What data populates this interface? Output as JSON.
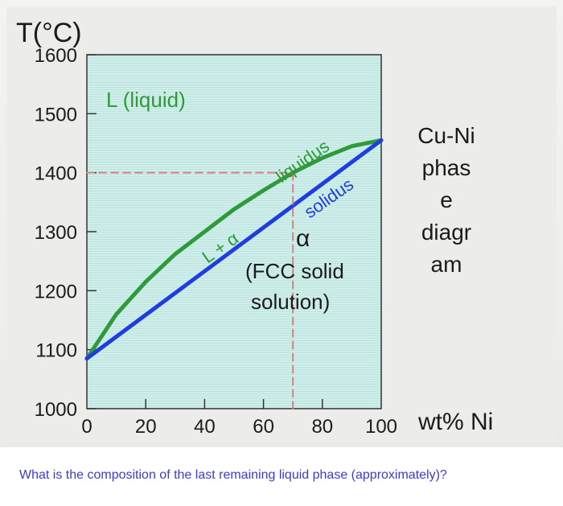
{
  "chart_data": {
    "type": "line",
    "title": "",
    "ylabel": "T(°C)",
    "xlabel": "wt% Ni",
    "x_ticks": [
      "0",
      "20",
      "40",
      "60",
      "80",
      "100"
    ],
    "y_ticks": [
      "1000",
      "1100",
      "1200",
      "1300",
      "1400",
      "1500",
      "1600"
    ],
    "xlim": [
      0,
      100
    ],
    "ylim": [
      1000,
      1600
    ],
    "series": [
      {
        "name": "liquidus",
        "color": "#2e9a3a",
        "x": [
          0,
          10,
          20,
          30,
          40,
          50,
          60,
          70,
          80,
          90,
          100
        ],
        "y": [
          1085,
          1160,
          1215,
          1262,
          1300,
          1338,
          1370,
          1400,
          1425,
          1445,
          1455
        ]
      },
      {
        "name": "solidus",
        "color": "#1f3ee0",
        "x": [
          0,
          100
        ],
        "y": [
          1085,
          1455
        ]
      },
      {
        "name": "",
        "color": "#d98080",
        "style": "dashed",
        "x": [
          0,
          70
        ],
        "y": [
          1400,
          1400
        ]
      },
      {
        "name": "",
        "color": "#d98080",
        "style": "dashed",
        "x": [
          70,
          70
        ],
        "y": [
          1400,
          1000
        ]
      }
    ],
    "annotations": {
      "liquid_region": "L (liquid)",
      "two_phase_region": "L + α",
      "liquidus_label": "liquidus",
      "solidus_label": "solidus",
      "alpha_symbol": "α",
      "alpha_desc_1": "(FCC solid",
      "alpha_desc_2": "solution)",
      "side_title_lines": [
        "Cu-Ni",
        "phas",
        "e",
        "diagr",
        "am"
      ]
    },
    "colors": {
      "plot_bg": "#c9ebe6",
      "liquid_label": "#2e9a3a",
      "text": "#1b1b1b"
    },
    "grid": false
  },
  "question": "What is the composition of the last remaining liquid phase (approximately)?"
}
